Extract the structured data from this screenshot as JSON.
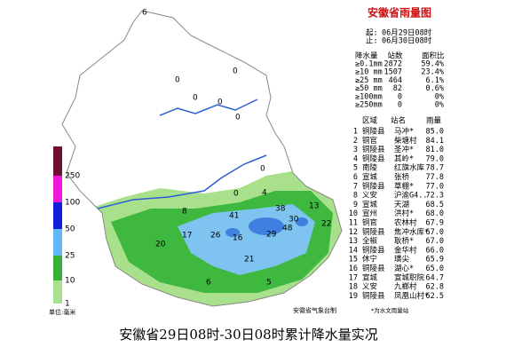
{
  "title": "安徽省雨量图",
  "period": {
    "start_label": "起:",
    "start": "06月29日08时",
    "end_label": "止:",
    "end": "06月30日08时"
  },
  "stats": {
    "headers": [
      "降水量",
      "站数",
      "面积比"
    ],
    "rows": [
      [
        "≥0.1mm",
        "2872",
        "59.4%"
      ],
      [
        "≥10 mm",
        "1507",
        "23.4%"
      ],
      [
        "≥25 mm",
        "464",
        "6.1%"
      ],
      [
        "≥50 mm",
        "82",
        "0.6%"
      ],
      [
        "≥100mm",
        "0",
        "0%"
      ],
      [
        "≥250mm",
        "0",
        "0%"
      ]
    ]
  },
  "ranking": {
    "headers": [
      "区域",
      "站名",
      "雨量"
    ],
    "rows": [
      [
        "1",
        "铜陵县",
        "马冲*",
        "85.0"
      ],
      [
        "2",
        "铜官",
        "柴塘村",
        "84.1"
      ],
      [
        "3",
        "铜陵县",
        "圣冲*",
        "81.0"
      ],
      [
        "4",
        "铜陵县",
        "其岭*",
        "79.0"
      ],
      [
        "5",
        "南陵",
        "红旗水库",
        "78.7"
      ],
      [
        "6",
        "宣城",
        "张桥",
        "77.8"
      ],
      [
        "7",
        "铜陵县",
        "草棚*",
        "77.0"
      ],
      [
        "8",
        "义安",
        "沪渝G4..",
        "72.3"
      ],
      [
        "9",
        "宣城",
        "天湖",
        "68.5"
      ],
      [
        "10",
        "宣州",
        "洪村*",
        "68.0"
      ],
      [
        "11",
        "铜官",
        "农林村",
        "67.9"
      ],
      [
        "12",
        "铜陵县",
        "焦冲水库*",
        "67.0"
      ],
      [
        "13",
        "全椒",
        "耿桥*",
        "67.0"
      ],
      [
        "14",
        "铜陵县",
        "金华村",
        "66.0"
      ],
      [
        "15",
        "休宁",
        "璜尖",
        "65.9"
      ],
      [
        "16",
        "铜陵县",
        "湖心*",
        "65.0"
      ],
      [
        "17",
        "宣城",
        "宣城职院",
        "64.7"
      ],
      [
        "18",
        "义安",
        "九榔村",
        "62.8"
      ],
      [
        "19",
        "铜陵县",
        "凤凰山村*",
        "62.5"
      ]
    ]
  },
  "note": "*为水文雨量站",
  "legend": {
    "labels": [
      "250",
      "100",
      "50",
      "25",
      "10",
      "1"
    ],
    "unit": "单位:毫米"
  },
  "map_labels": [
    "6",
    "0",
    "0",
    "0",
    "0",
    "0",
    "0",
    "0",
    "4",
    "8",
    "38",
    "41",
    "30",
    "48",
    "13",
    "22",
    "29",
    "16",
    "26",
    "17",
    "21",
    "20",
    "5",
    "6"
  ],
  "credit": "安徽省气象台制",
  "caption": "安徽省29日08时-30日08时累计降水量实况"
}
